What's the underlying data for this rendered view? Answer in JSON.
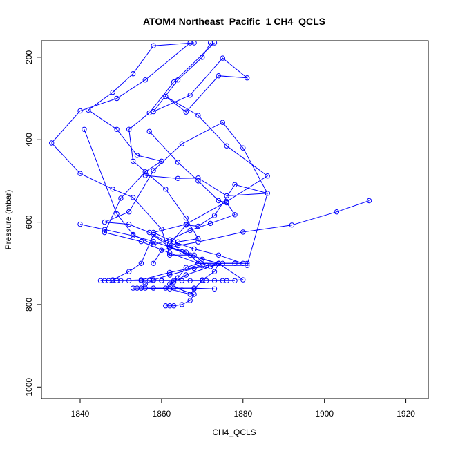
{
  "chart_data": {
    "type": "line",
    "title": "ATOM4 Northeast_Pacific_1 CH4_QCLS",
    "xlabel": "CH4_QCLS",
    "ylabel": "Pressure (mbar)",
    "xlim": [
      1830.5,
      1925.5
    ],
    "ylim": [
      1028,
      160
    ],
    "y_reversed": true,
    "x_ticks": [
      1840,
      1860,
      1880,
      1900,
      1920
    ],
    "y_ticks": [
      200,
      400,
      600,
      800,
      1000
    ],
    "grid": false,
    "legend": "none",
    "series_color": "#0000ff",
    "marker": "open-circle",
    "series": [
      {
        "x": [
          1872,
          1870,
          1864,
          1858,
          1867,
          1875,
          1881,
          1874,
          1866,
          1861,
          1869,
          1876,
          1886,
          1876,
          1866,
          1858,
          1863,
          1868,
          1874,
          1880,
          1875,
          1872,
          1866,
          1863,
          1861,
          1867,
          1870,
          1873,
          1874,
          1869,
          1866,
          1864,
          1862,
          1865,
          1868,
          1867,
          1865,
          1863,
          1862,
          1861
        ],
        "y": [
          165,
          200,
          255,
          332,
          292,
          202,
          250,
          245,
          333,
          295,
          341,
          415,
          488,
          550,
          605,
          625,
          648,
          665,
          680,
          700,
          700,
          708,
          728,
          745,
          760,
          775,
          740,
          720,
          700,
          700,
          710,
          735,
          750,
          765,
          775,
          790,
          800,
          803,
          803,
          803
        ],
        "name": ""
      },
      {
        "x": [
          1868,
          1858,
          1853,
          1848,
          1842,
          1849,
          1854,
          1860,
          1856,
          1850,
          1846,
          1855,
          1862,
          1869,
          1874,
          1868,
          1862,
          1858,
          1856,
          1855,
          1862,
          1868,
          1873,
          1868,
          1863,
          1858,
          1856,
          1855,
          1854,
          1853
        ],
        "y": [
          165,
          172,
          240,
          285,
          328,
          375,
          438,
          452,
          478,
          542,
          625,
          647,
          675,
          700,
          700,
          712,
          728,
          740,
          750,
          760,
          762,
          762,
          762,
          760,
          760,
          760,
          760,
          760,
          760,
          760
        ],
        "name": ""
      },
      {
        "x": [
          1873,
          1863,
          1857,
          1852,
          1853,
          1861,
          1866,
          1869,
          1864,
          1862,
          1867,
          1874,
          1880,
          1873,
          1865,
          1860,
          1857,
          1852,
          1848,
          1846,
          1847,
          1850,
          1855,
          1860,
          1865,
          1870,
          1875,
          1878,
          1876,
          1871,
          1867,
          1863,
          1858,
          1855
        ],
        "y": [
          165,
          260,
          335,
          375,
          452,
          520,
          590,
          640,
          648,
          662,
          680,
          700,
          740,
          742,
          742,
          742,
          742,
          742,
          742,
          742,
          742,
          742,
          742,
          742,
          742,
          742,
          742,
          742,
          742,
          742,
          742,
          742,
          742,
          742
        ],
        "name": ""
      },
      {
        "x": [
          1867,
          1856,
          1849,
          1840,
          1833,
          1840,
          1848,
          1853,
          1860,
          1862,
          1868,
          1871,
          1881,
          1886,
          1880,
          1875,
          1865,
          1858,
          1852,
          1846,
          1852,
          1857,
          1862,
          1866,
          1870,
          1862,
          1855,
          1849,
          1845
        ],
        "y": [
          165,
          255,
          300,
          330,
          408,
          482,
          520,
          540,
          617,
          680,
          680,
          705,
          705,
          530,
          420,
          358,
          410,
          475,
          575,
          600,
          605,
          625,
          660,
          673,
          706,
          722,
          740,
          742,
          742
        ],
        "name": ""
      },
      {
        "x": [
          1857,
          1864,
          1869,
          1874,
          1876,
          1878,
          1872,
          1867,
          1862,
          1858,
          1853,
          1849,
          1841
        ],
        "y": [
          380,
          455,
          500,
          548,
          553,
          582,
          603,
          620,
          643,
          655,
          630,
          580,
          375
        ],
        "name": ""
      },
      {
        "x": [
          1856,
          1864,
          1869,
          1876,
          1886,
          1878,
          1873,
          1869,
          1866,
          1862,
          1858,
          1855,
          1852,
          1848
        ],
        "y": [
          487,
          494,
          493,
          536,
          530,
          509,
          584,
          610,
          607,
          653,
          630,
          700,
          720,
          740
        ],
        "name": ""
      },
      {
        "x": [
          1911,
          1903,
          1892,
          1880,
          1869,
          1864,
          1860,
          1858
        ],
        "y": [
          548,
          575,
          607,
          624,
          648,
          657,
          668,
          700
        ],
        "name": ""
      },
      {
        "x": [
          1840,
          1846,
          1853,
          1858,
          1862,
          1865,
          1870,
          1874,
          1878,
          1881
        ],
        "y": [
          605,
          618,
          633,
          647,
          660,
          672,
          690,
          700,
          700,
          700
        ],
        "name": ""
      }
    ]
  }
}
